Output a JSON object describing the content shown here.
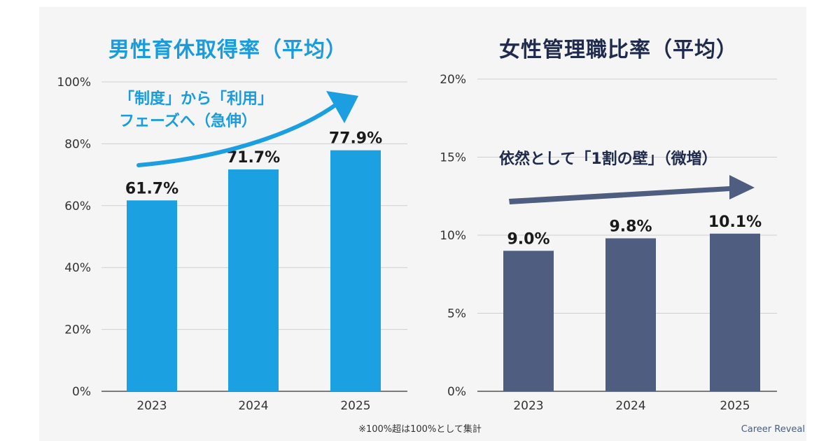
{
  "colors": {
    "left_bar": "#1BA1E2",
    "left_title": "#1A9BDC",
    "left_arrow": "#1C9FE0",
    "right_bar": "#4F5D80",
    "right_title": "#1F2A4D",
    "right_arrow": "#4F5D80",
    "grid": "#cfcfcf",
    "axis_text": "#333333",
    "data_label": "#1a1a1a"
  },
  "chart_data": [
    {
      "type": "bar",
      "title": "男性育休取得率（平均）",
      "categories": [
        "2023",
        "2024",
        "2025"
      ],
      "values": [
        61.7,
        71.7,
        77.9
      ],
      "data_labels": [
        "61.7%",
        "71.7%",
        "77.9%"
      ],
      "ylim": [
        0,
        100
      ],
      "yticks": [
        0,
        20,
        40,
        60,
        80,
        100
      ],
      "ytick_labels": [
        "0%",
        "20%",
        "40%",
        "60%",
        "80%",
        "100%"
      ],
      "grid": true,
      "annotation": [
        "「制度」から「利用」",
        "フェーズへ（急伸）"
      ]
    },
    {
      "type": "bar",
      "title": "女性管理職比率（平均）",
      "categories": [
        "2023",
        "2024",
        "2025"
      ],
      "values": [
        9.0,
        9.8,
        10.1
      ],
      "data_labels": [
        "9.0%",
        "9.8%",
        "10.1%"
      ],
      "ylim": [
        0,
        20
      ],
      "yticks": [
        0,
        5,
        10,
        15,
        20
      ],
      "ytick_labels": [
        "0%",
        "5%",
        "10%",
        "15%",
        "20%"
      ],
      "grid": true,
      "annotation": [
        "依然として「1割の壁」（微増）"
      ]
    }
  ],
  "footnote": "※100%超は100%として集計",
  "brand": "Career Reveal"
}
